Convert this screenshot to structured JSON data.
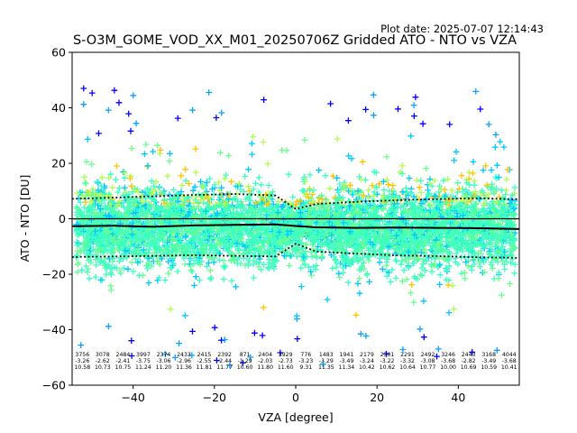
{
  "chart_data": {
    "type": "scatter",
    "title": "S-O3M_GOME_VOD_XX_M01_20250706Z Gridded ATO - NTO vs VZA",
    "plot_date": "Plot date: 2025-07-07 12:14:43",
    "xlabel": "VZA [degree]",
    "ylabel": "ATO - NTO [DU]",
    "xlim": [
      -55,
      55
    ],
    "ylim": [
      -60,
      60
    ],
    "xticks": [
      -40,
      -20,
      0,
      20,
      40
    ],
    "yticks": [
      -60,
      -40,
      -20,
      0,
      20,
      40,
      60
    ],
    "marker": "+",
    "grid": false,
    "colors": {
      "points": [
        "#3cffc0",
        "#6cff8c",
        "#00c8ff",
        "#b0ff50",
        "#ffc400",
        "#0aa0ff",
        "#0000ff"
      ],
      "lines": "#000000"
    },
    "lines": [
      {
        "style": "solid",
        "x": [
          -55,
          -45,
          -35,
          -25,
          -15,
          -5,
          0,
          5,
          15,
          25,
          35,
          45,
          55
        ],
        "y": [
          -2.7,
          -2.5,
          -2.9,
          -2.4,
          -2.2,
          -2.0,
          -2.6,
          -3.1,
          -3.3,
          -3.2,
          -3.3,
          -3.4,
          -3.7
        ]
      },
      {
        "style": "dotted",
        "x": [
          -55,
          -45,
          -35,
          -25,
          -15,
          -5,
          0,
          5,
          15,
          25,
          35,
          45,
          55
        ],
        "y": [
          7.2,
          7.6,
          8.1,
          8.6,
          8.9,
          8.4,
          3.5,
          5.3,
          6.1,
          6.7,
          7.1,
          7.4,
          7.0
        ]
      },
      {
        "style": "dotted",
        "x": [
          -55,
          -45,
          -35,
          -25,
          -15,
          -5,
          0,
          5,
          15,
          25,
          35,
          45,
          55
        ],
        "y": [
          -13.8,
          -13.6,
          -13.4,
          -13.1,
          -13.4,
          -13.6,
          -9.0,
          -11.8,
          -12.6,
          -13.2,
          -13.5,
          -13.9,
          -14.1
        ]
      }
    ],
    "stats": [
      {
        "x": -52.5,
        "n": "3756",
        "mean": "-3.26",
        "std": "10.58"
      },
      {
        "x": -47.5,
        "n": "3078",
        "mean": "-2.62",
        "std": "10.73"
      },
      {
        "x": -42.5,
        "n": "2484",
        "mean": "-2.41",
        "std": "10.75"
      },
      {
        "x": -37.5,
        "n": "3997",
        "mean": "-3.75",
        "std": "11.24"
      },
      {
        "x": -32.5,
        "n": "2374",
        "mean": "-3.06",
        "std": "11.20"
      },
      {
        "x": -27.5,
        "n": "2433",
        "mean": "-2.96",
        "std": "11.36"
      },
      {
        "x": -22.5,
        "n": "2415",
        "mean": "-2.55",
        "std": "11.81"
      },
      {
        "x": -17.5,
        "n": "2392",
        "mean": "-2.44",
        "std": "11.77"
      },
      {
        "x": -12.5,
        "n": "871",
        "mean": "-1.29",
        "std": "10.60"
      },
      {
        "x": -7.5,
        "n": "2404",
        "mean": "-2.03",
        "std": "11.80"
      },
      {
        "x": -2.5,
        "n": "3929",
        "mean": "-2.73",
        "std": "11.60"
      },
      {
        "x": 2.5,
        "n": "776",
        "mean": "-3.23",
        "std": "9.31"
      },
      {
        "x": 7.5,
        "n": "1483",
        "mean": "-3.29",
        "std": "11.35"
      },
      {
        "x": 12.5,
        "n": "1941",
        "mean": "-3.49",
        "std": "11.34"
      },
      {
        "x": 17.5,
        "n": "2179",
        "mean": "-3.24",
        "std": "10.42"
      },
      {
        "x": 22.5,
        "n": "2301",
        "mean": "-3.22",
        "std": "10.62"
      },
      {
        "x": 27.5,
        "n": "2291",
        "mean": "-3.32",
        "std": "10.64"
      },
      {
        "x": 32.5,
        "n": "2492",
        "mean": "-3.08",
        "std": "10.77"
      },
      {
        "x": 37.5,
        "n": "3246",
        "mean": "-3.68",
        "std": "10.00"
      },
      {
        "x": 42.5,
        "n": "2443",
        "mean": "-2.82",
        "std": "10.69"
      },
      {
        "x": 47.5,
        "n": "3168",
        "mean": "-3.49",
        "std": "10.59"
      },
      {
        "x": 52.5,
        "n": "4044",
        "mean": "-3.68",
        "std": "10.41"
      }
    ]
  }
}
